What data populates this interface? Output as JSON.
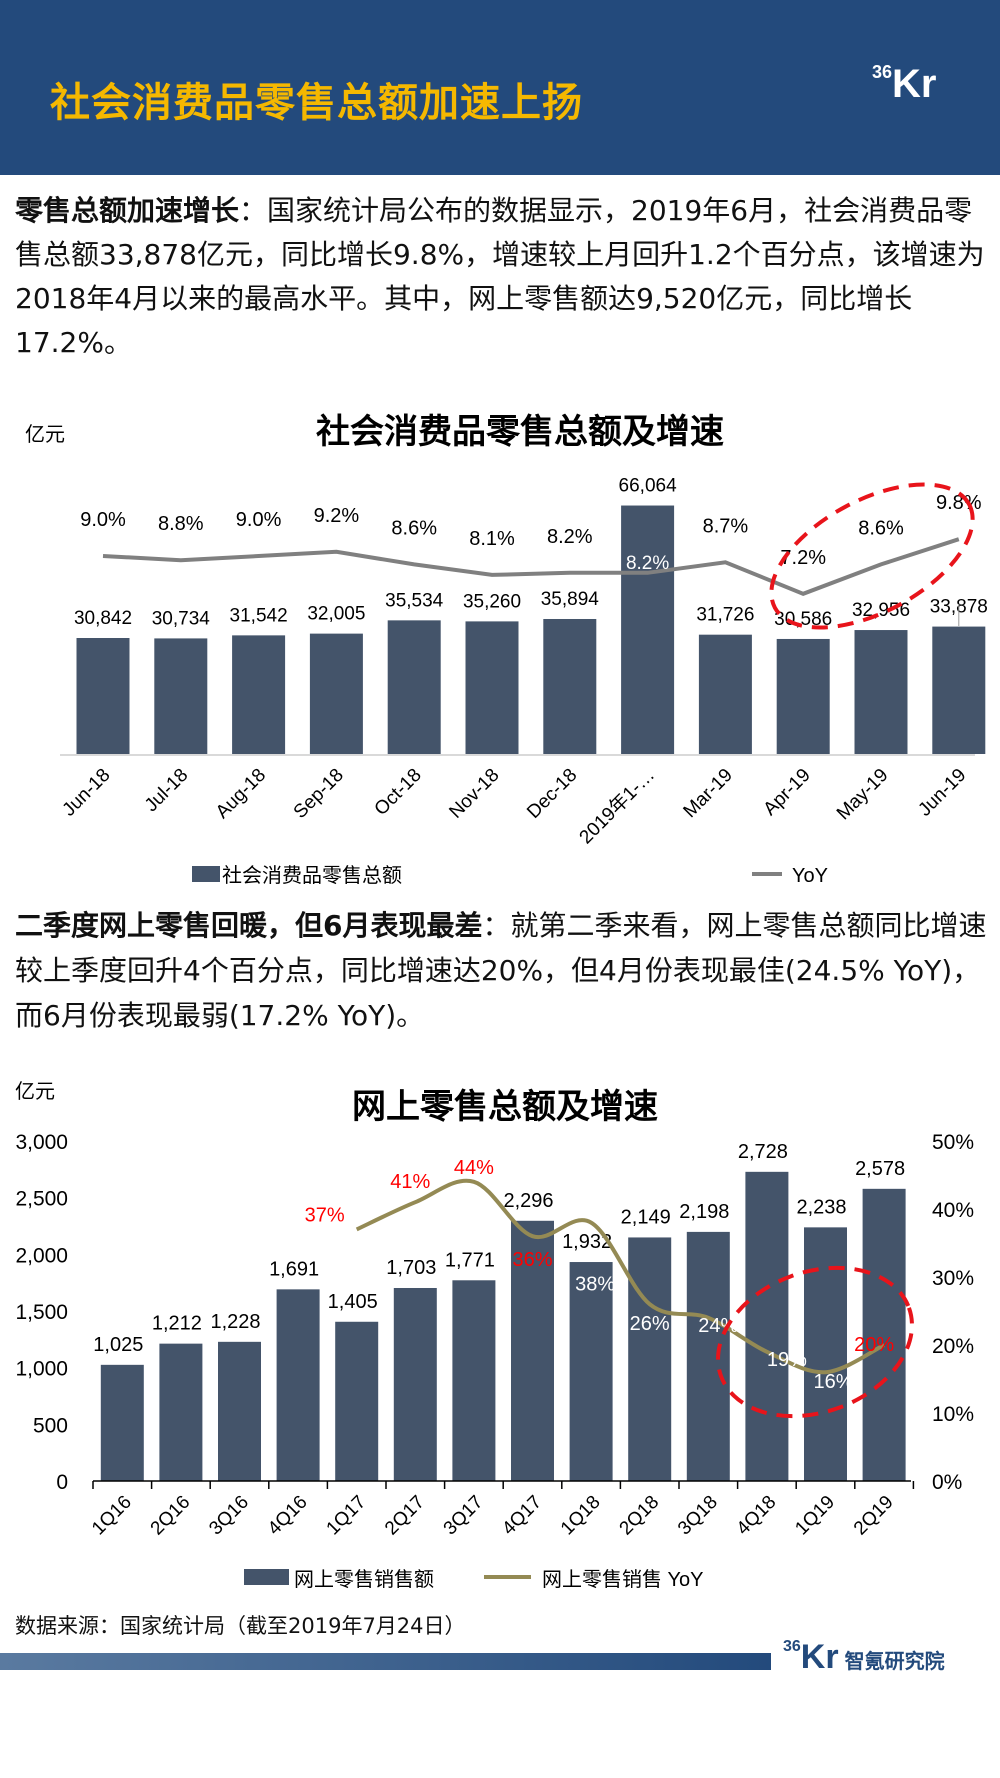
{
  "header": {
    "title": "社会消费品零售总额加速上扬",
    "logo": {
      "num": "36",
      "kr": "Kr"
    }
  },
  "para1": {
    "bold": "零售总额加速增长",
    "text": "：国家统计局公布的数据显示，2019年6月，社会消费品零售总额33,878亿元，同比增长9.8%，增速较上月回升1.2个百分点，该增速为2018年4月以来的最高水平。其中，网上零售额达9,520亿元，同比增长17.2%。"
  },
  "para2": {
    "bold": "二季度网上零售回暖，但6月表现最差",
    "text": "：就第二季来看，网上零售总额同比增速较上季度回升4个百分点，同比增速达20%，但4月份表现最佳(24.5% YoY)，而6月份表现最弱(17.2% YoY)。"
  },
  "chart_data": [
    {
      "type": "bar+line",
      "title": "社会消费品零售总额及增速",
      "unit": "亿元",
      "categories": [
        "Jun-18",
        "Jul-18",
        "Aug-18",
        "Sep-18",
        "Oct-18",
        "Nov-18",
        "Dec-18",
        "2019年1-…",
        "Mar-19",
        "Apr-19",
        "May-19",
        "Jun-19"
      ],
      "series": [
        {
          "name": "社会消费品零售总额",
          "type": "bar",
          "color": "#44546a",
          "values": [
            30842,
            30734,
            31542,
            32005,
            35534,
            35260,
            35894,
            66064,
            31726,
            30586,
            32956,
            33878
          ],
          "labels": [
            "30,842",
            "30,734",
            "31,542",
            "32,005",
            "35,534",
            "35,260",
            "35,894",
            "66,064",
            "31,726",
            "30,586",
            "32,956",
            "33,878"
          ]
        },
        {
          "name": "YoY",
          "type": "line",
          "color": "#808080",
          "values": [
            9.0,
            8.8,
            9.0,
            9.2,
            8.6,
            8.1,
            8.2,
            8.2,
            8.7,
            7.2,
            8.6,
            9.8
          ],
          "labels": [
            "9.0%",
            "8.8%",
            "9.0%",
            "9.2%",
            "8.6%",
            "8.1%",
            "8.2%",
            "8.2%",
            "8.7%",
            "7.2%",
            "8.6%",
            "9.8%"
          ]
        }
      ],
      "annotation": "red dashed ellipse around Apr-19 to Jun-19",
      "legend": "bottom",
      "grid": false
    },
    {
      "type": "bar+line",
      "title": "网上零售总额及增速",
      "unit": "亿元",
      "categories": [
        "1Q16",
        "2Q16",
        "3Q16",
        "4Q16",
        "1Q17",
        "2Q17",
        "3Q17",
        "4Q17",
        "1Q18",
        "2Q18",
        "3Q18",
        "4Q18",
        "1Q19",
        "2Q19"
      ],
      "left_axis": {
        "range": [
          0,
          3000
        ],
        "ticks": [
          "0",
          "500",
          "1,000",
          "1,500",
          "2,000",
          "2,500",
          "3,000"
        ]
      },
      "right_axis": {
        "range": [
          0,
          50
        ],
        "ticks": [
          "0%",
          "10%",
          "20%",
          "30%",
          "40%",
          "50%"
        ]
      },
      "series": [
        {
          "name": "网上零售销售额",
          "type": "bar",
          "color": "#44546a",
          "values": [
            1025,
            1212,
            1228,
            1691,
            1405,
            1703,
            1771,
            2296,
            1932,
            2149,
            2198,
            2728,
            2238,
            2578
          ],
          "labels": [
            "1,025",
            "1,212",
            "1,228",
            "1,691",
            "1,405",
            "1,703",
            "1,771",
            "2,296",
            "1,932",
            "2,149",
            "2,198",
            "2,728",
            "2,238",
            "2,578"
          ]
        },
        {
          "name": "网上零售销售 YoY",
          "type": "line",
          "color": "#948a54",
          "values": [
            null,
            null,
            null,
            null,
            37,
            41,
            44,
            36,
            38,
            26,
            24,
            19,
            16,
            20
          ],
          "labels": [
            "",
            "",
            "",
            "",
            "37%",
            "41%",
            "44%",
            "36%",
            "38%",
            "26%",
            "24%",
            "19%",
            "16%",
            "20%"
          ],
          "label_colors": [
            "",
            "",
            "",
            "",
            "#ff0000",
            "#ff0000",
            "#ff0000",
            "#ff0000",
            "#ffffff",
            "#ffffff",
            "#ffffff",
            "#ffffff",
            "#ffffff",
            "#ff0000"
          ]
        }
      ],
      "annotation": "red dashed ellipse around 4Q18 to 2Q19",
      "legend": "bottom",
      "grid": false
    }
  ],
  "source": "数据来源：国家统计局（截至2019年7月24日）",
  "footer": {
    "logo_num": "36",
    "logo_kr": "Kr",
    "org": "智氪研究院"
  }
}
